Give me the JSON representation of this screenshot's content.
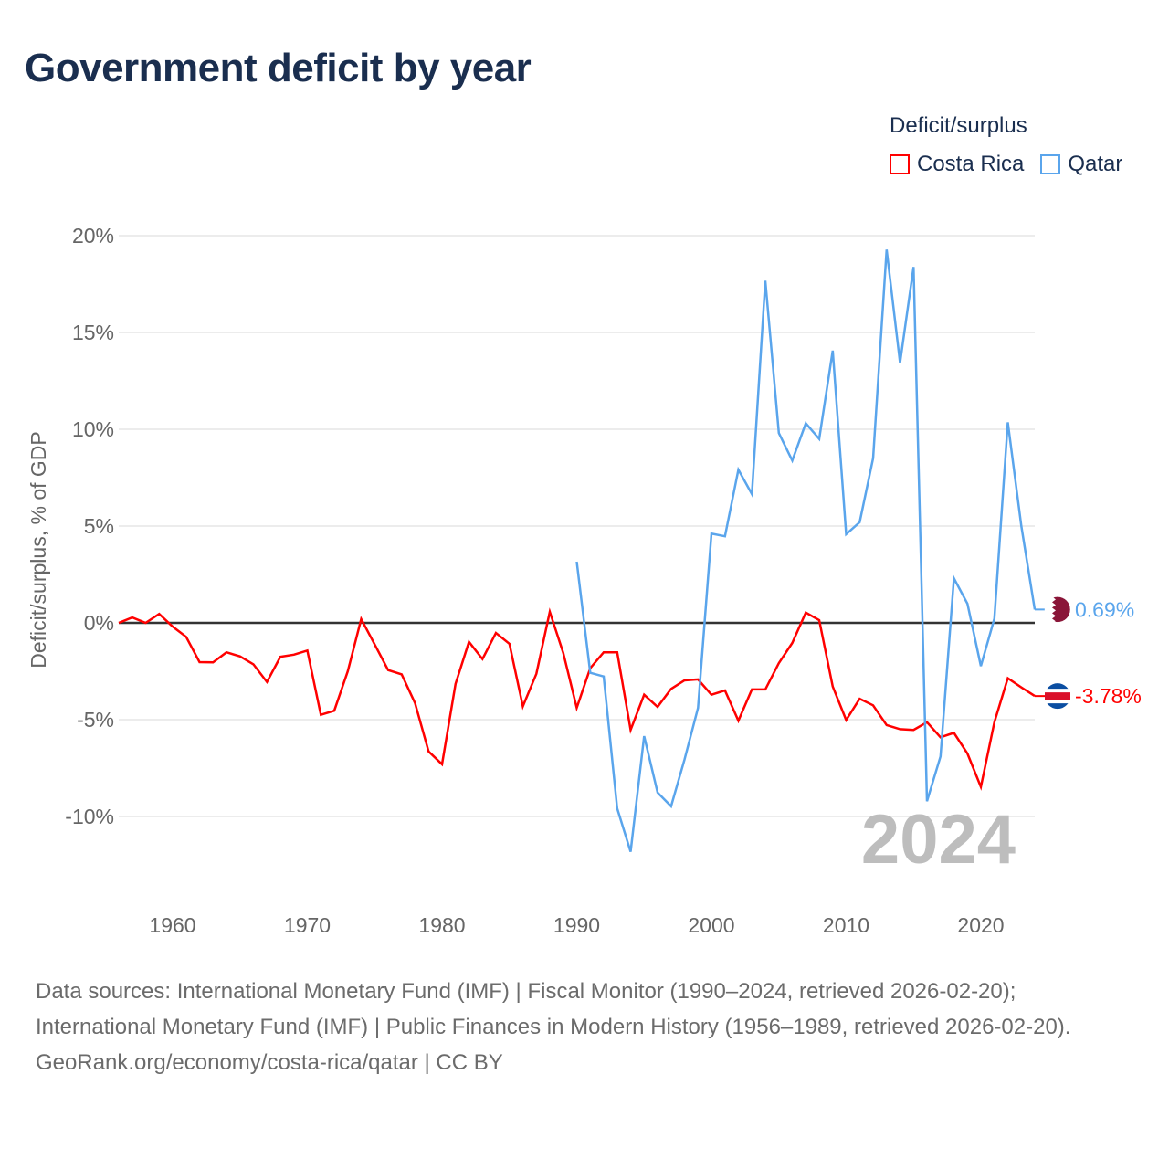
{
  "title": "Government deficit by year",
  "legend": {
    "title": "Deficit/surplus",
    "items": [
      {
        "label": "Costa Rica",
        "color": "#ff0000"
      },
      {
        "label": "Qatar",
        "color": "#5aa5ec"
      }
    ]
  },
  "year_label": "2024",
  "end_labels": {
    "Costa Rica": "-3.78%",
    "Qatar": "0.69%"
  },
  "footer": {
    "sources": "Data sources: International Monetary Fund (IMF) | Fiscal Monitor (1990–2024, retrieved 2026-02-20); International Monetary Fund (IMF) | Public Finances in Modern History (1956–1989, retrieved 2026-02-20).",
    "credit": "GeoRank.org/economy/costa-rica/qatar | CC BY"
  },
  "chart_data": {
    "type": "line",
    "title": "Government deficit by year",
    "xlabel": "",
    "ylabel": "Deficit/surplus, % of GDP",
    "xlim": [
      1956,
      2024
    ],
    "ylim": [
      -13,
      21
    ],
    "yticks": [
      20,
      15,
      10,
      5,
      0,
      -5,
      -10
    ],
    "ytick_labels": [
      "20%",
      "15%",
      "10%",
      "5%",
      "0%",
      "-5%",
      "-10%"
    ],
    "xticks": [
      1960,
      1970,
      1980,
      1990,
      2000,
      2010,
      2020
    ],
    "xtick_labels": [
      "1960",
      "1970",
      "1980",
      "1990",
      "2000",
      "2010",
      "2020"
    ],
    "grid": true,
    "legend_position": "top-right",
    "series": [
      {
        "name": "Costa Rica",
        "color": "#ff0000",
        "start_year": 1956,
        "values": [
          0.0,
          0.28,
          0.0,
          0.46,
          -0.19,
          -0.72,
          -2.03,
          -2.04,
          -1.52,
          -1.73,
          -2.14,
          -3.05,
          -1.75,
          -1.64,
          -1.43,
          -4.75,
          -4.54,
          -2.5,
          0.2,
          -1.12,
          -2.44,
          -2.66,
          -4.15,
          -6.64,
          -7.3,
          -3.15,
          -0.98,
          -1.87,
          -0.52,
          -1.08,
          -4.31,
          -2.63,
          0.57,
          -1.56,
          -4.39,
          -2.34,
          -1.52,
          -1.52,
          -5.53,
          -3.71,
          -4.34,
          -3.41,
          -2.97,
          -2.92,
          -3.71,
          -3.49,
          -5.05,
          -3.44,
          -3.44,
          -2.08,
          -1.04,
          0.53,
          0.14,
          -3.29,
          -5.02,
          -3.92,
          -4.26,
          -5.28,
          -5.49,
          -5.53,
          -5.13,
          -5.91,
          -5.68,
          -6.75,
          -8.47,
          -5.13,
          -2.86,
          -3.33,
          -3.78
        ]
      },
      {
        "name": "Qatar",
        "color": "#5aa5ec",
        "start_year": 1990,
        "values": [
          3.16,
          -2.58,
          -2.77,
          -9.58,
          -11.82,
          -5.85,
          -8.76,
          -9.47,
          -7.06,
          -4.39,
          4.61,
          4.47,
          7.91,
          6.65,
          17.67,
          9.8,
          8.38,
          10.31,
          9.5,
          14.06,
          4.58,
          5.2,
          8.5,
          19.28,
          13.43,
          18.38,
          -9.21,
          -6.9,
          2.3,
          0.99,
          -2.23,
          0.22,
          10.36,
          5.0,
          0.69
        ]
      }
    ]
  }
}
